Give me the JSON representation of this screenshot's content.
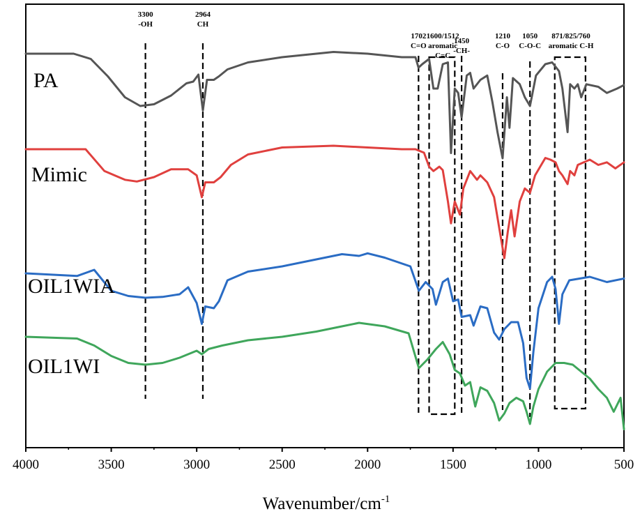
{
  "chart_data": {
    "type": "line",
    "xlabel": "Wavenumber/cm",
    "xlabel_sup": "-1",
    "xlim": [
      4000,
      500
    ],
    "x_reversed": true,
    "xticks": [
      "4000",
      "3500",
      "3000",
      "2500",
      "2000",
      "1500",
      "1000",
      "500"
    ],
    "y_axis_shown": false,
    "series": [
      {
        "name": "PA",
        "color": "#555555",
        "points": [
          [
            4000,
            0.0
          ],
          [
            3720,
            0.0
          ],
          [
            3620,
            -0.6
          ],
          [
            3520,
            -2.6
          ],
          [
            3420,
            -5.0
          ],
          [
            3330,
            -6.0
          ],
          [
            3250,
            -5.8
          ],
          [
            3150,
            -4.8
          ],
          [
            3060,
            -3.4
          ],
          [
            3020,
            -3.2
          ],
          [
            2990,
            -2.4
          ],
          [
            2964,
            -6.5
          ],
          [
            2940,
            -3.0
          ],
          [
            2900,
            -3.0
          ],
          [
            2870,
            -2.6
          ],
          [
            2820,
            -1.8
          ],
          [
            2700,
            -1.0
          ],
          [
            2500,
            -0.4
          ],
          [
            2200,
            0.2
          ],
          [
            2000,
            0.0
          ],
          [
            1800,
            -0.4
          ],
          [
            1720,
            -0.4
          ],
          [
            1702,
            -1.6
          ],
          [
            1680,
            -1.2
          ],
          [
            1640,
            -0.6
          ],
          [
            1615,
            -4.0
          ],
          [
            1590,
            -4.0
          ],
          [
            1560,
            -1.2
          ],
          [
            1530,
            -1.0
          ],
          [
            1512,
            -11.4
          ],
          [
            1490,
            -4.0
          ],
          [
            1470,
            -4.5
          ],
          [
            1450,
            -7.3
          ],
          [
            1420,
            -2.5
          ],
          [
            1400,
            -2.2
          ],
          [
            1380,
            -4.0
          ],
          [
            1340,
            -3.0
          ],
          [
            1300,
            -2.5
          ],
          [
            1270,
            -5.5
          ],
          [
            1240,
            -9.0
          ],
          [
            1210,
            -12.0
          ],
          [
            1185,
            -5.0
          ],
          [
            1170,
            -8.5
          ],
          [
            1150,
            -2.8
          ],
          [
            1110,
            -3.5
          ],
          [
            1080,
            -5.0
          ],
          [
            1050,
            -6.0
          ],
          [
            1015,
            -2.5
          ],
          [
            960,
            -1.2
          ],
          [
            920,
            -1.0
          ],
          [
            880,
            -2.0
          ],
          [
            860,
            -4.0
          ],
          [
            830,
            -9.0
          ],
          [
            815,
            -3.5
          ],
          [
            790,
            -4.0
          ],
          [
            770,
            -3.5
          ],
          [
            750,
            -5.0
          ],
          [
            720,
            -3.5
          ],
          [
            650,
            -3.8
          ],
          [
            600,
            -4.5
          ],
          [
            540,
            -4.0
          ],
          [
            500,
            -3.6
          ]
        ],
        "label_value": "PA"
      },
      {
        "name": "Mimic",
        "color": "#e0403e",
        "points": [
          [
            4000,
            0.0
          ],
          [
            3650,
            0.0
          ],
          [
            3540,
            -2.5
          ],
          [
            3420,
            -3.5
          ],
          [
            3350,
            -3.7
          ],
          [
            3250,
            -3.2
          ],
          [
            3150,
            -2.3
          ],
          [
            3050,
            -2.3
          ],
          [
            3000,
            -3.0
          ],
          [
            2970,
            -5.5
          ],
          [
            2950,
            -3.8
          ],
          [
            2900,
            -3.8
          ],
          [
            2860,
            -3.2
          ],
          [
            2800,
            -1.8
          ],
          [
            2700,
            -0.6
          ],
          [
            2500,
            0.2
          ],
          [
            2200,
            0.4
          ],
          [
            2000,
            0.2
          ],
          [
            1800,
            0.0
          ],
          [
            1720,
            0.0
          ],
          [
            1670,
            -0.4
          ],
          [
            1640,
            -2.0
          ],
          [
            1615,
            -2.5
          ],
          [
            1580,
            -2.0
          ],
          [
            1560,
            -2.4
          ],
          [
            1530,
            -6.0
          ],
          [
            1512,
            -8.5
          ],
          [
            1490,
            -6.0
          ],
          [
            1460,
            -7.5
          ],
          [
            1440,
            -4.5
          ],
          [
            1400,
            -2.5
          ],
          [
            1360,
            -3.5
          ],
          [
            1340,
            -3.0
          ],
          [
            1300,
            -3.8
          ],
          [
            1260,
            -5.5
          ],
          [
            1230,
            -9.0
          ],
          [
            1200,
            -12.5
          ],
          [
            1180,
            -9.5
          ],
          [
            1160,
            -7.0
          ],
          [
            1140,
            -10.0
          ],
          [
            1110,
            -6.0
          ],
          [
            1080,
            -4.5
          ],
          [
            1050,
            -5.0
          ],
          [
            1020,
            -3.0
          ],
          [
            960,
            -1.0
          ],
          [
            930,
            -1.2
          ],
          [
            900,
            -1.5
          ],
          [
            880,
            -2.5
          ],
          [
            860,
            -3.0
          ],
          [
            830,
            -4.0
          ],
          [
            815,
            -2.5
          ],
          [
            790,
            -3.0
          ],
          [
            770,
            -1.8
          ],
          [
            700,
            -1.2
          ],
          [
            650,
            -1.8
          ],
          [
            600,
            -1.5
          ],
          [
            550,
            -2.2
          ],
          [
            500,
            -1.5
          ]
        ],
        "label_value": "Mimic"
      },
      {
        "name": "OIL1WIA",
        "color": "#2a6cc4",
        "points": [
          [
            4000,
            0.0
          ],
          [
            3800,
            -0.2
          ],
          [
            3700,
            -0.3
          ],
          [
            3600,
            0.4
          ],
          [
            3550,
            -0.8
          ],
          [
            3500,
            -2.0
          ],
          [
            3400,
            -2.6
          ],
          [
            3300,
            -2.8
          ],
          [
            3200,
            -2.7
          ],
          [
            3100,
            -2.4
          ],
          [
            3050,
            -1.6
          ],
          [
            3000,
            -3.4
          ],
          [
            2970,
            -5.8
          ],
          [
            2950,
            -3.8
          ],
          [
            2900,
            -4.0
          ],
          [
            2870,
            -3.2
          ],
          [
            2820,
            -0.8
          ],
          [
            2700,
            0.2
          ],
          [
            2500,
            0.8
          ],
          [
            2300,
            1.6
          ],
          [
            2150,
            2.2
          ],
          [
            2050,
            2.0
          ],
          [
            2000,
            2.3
          ],
          [
            1900,
            1.8
          ],
          [
            1750,
            0.8
          ],
          [
            1700,
            -2.0
          ],
          [
            1660,
            -1.0
          ],
          [
            1620,
            -1.8
          ],
          [
            1600,
            -3.6
          ],
          [
            1560,
            -1.0
          ],
          [
            1530,
            -0.6
          ],
          [
            1500,
            -3.2
          ],
          [
            1470,
            -3.0
          ],
          [
            1450,
            -5.0
          ],
          [
            1400,
            -4.8
          ],
          [
            1380,
            -6.0
          ],
          [
            1340,
            -3.8
          ],
          [
            1300,
            -4.0
          ],
          [
            1260,
            -6.8
          ],
          [
            1230,
            -7.6
          ],
          [
            1200,
            -6.4
          ],
          [
            1160,
            -5.6
          ],
          [
            1120,
            -5.6
          ],
          [
            1090,
            -8.0
          ],
          [
            1070,
            -12.0
          ],
          [
            1050,
            -13.2
          ],
          [
            1030,
            -9.0
          ],
          [
            1000,
            -4.0
          ],
          [
            950,
            -1.0
          ],
          [
            920,
            -0.4
          ],
          [
            900,
            -1.8
          ],
          [
            880,
            -5.8
          ],
          [
            860,
            -2.4
          ],
          [
            820,
            -0.8
          ],
          [
            700,
            -0.4
          ],
          [
            600,
            -1.0
          ],
          [
            500,
            -0.6
          ]
        ],
        "label_value": "OIL1WIA"
      },
      {
        "name": "OIL1WI",
        "color": "#3fa65b",
        "points": [
          [
            4000,
            0.0
          ],
          [
            3700,
            -0.2
          ],
          [
            3600,
            -1.0
          ],
          [
            3500,
            -2.2
          ],
          [
            3400,
            -3.0
          ],
          [
            3300,
            -3.2
          ],
          [
            3200,
            -3.0
          ],
          [
            3100,
            -2.4
          ],
          [
            3000,
            -1.6
          ],
          [
            2970,
            -2.0
          ],
          [
            2930,
            -1.4
          ],
          [
            2850,
            -1.0
          ],
          [
            2700,
            -0.4
          ],
          [
            2500,
            0.0
          ],
          [
            2300,
            0.6
          ],
          [
            2150,
            1.2
          ],
          [
            2050,
            1.6
          ],
          [
            1900,
            1.2
          ],
          [
            1760,
            0.4
          ],
          [
            1700,
            -3.6
          ],
          [
            1650,
            -2.6
          ],
          [
            1600,
            -1.4
          ],
          [
            1560,
            -0.6
          ],
          [
            1520,
            -2.0
          ],
          [
            1490,
            -3.8
          ],
          [
            1460,
            -4.2
          ],
          [
            1430,
            -5.6
          ],
          [
            1400,
            -5.2
          ],
          [
            1370,
            -8.0
          ],
          [
            1340,
            -5.8
          ],
          [
            1300,
            -6.2
          ],
          [
            1260,
            -7.6
          ],
          [
            1230,
            -9.6
          ],
          [
            1200,
            -8.8
          ],
          [
            1170,
            -7.6
          ],
          [
            1130,
            -7.0
          ],
          [
            1090,
            -7.4
          ],
          [
            1070,
            -8.6
          ],
          [
            1050,
            -10.0
          ],
          [
            1030,
            -8.0
          ],
          [
            1000,
            -6.0
          ],
          [
            950,
            -4.0
          ],
          [
            900,
            -3.0
          ],
          [
            850,
            -3.0
          ],
          [
            800,
            -3.2
          ],
          [
            750,
            -4.0
          ],
          [
            700,
            -4.8
          ],
          [
            650,
            -6.0
          ],
          [
            600,
            -7.0
          ],
          [
            560,
            -8.6
          ],
          [
            520,
            -7.0
          ],
          [
            500,
            -10.6
          ]
        ],
        "label_value": "OIL1WI"
      }
    ],
    "annotations": [
      {
        "x": 3300,
        "lines": [
          "3300",
          "-OH"
        ]
      },
      {
        "x": 2964,
        "lines": [
          "2964",
          "CH"
        ]
      },
      {
        "x": 1702,
        "lines": [
          "1702",
          "C=O"
        ]
      },
      {
        "x": 1560,
        "lines": [
          "1600/1512",
          "aromatic",
          "C=C"
        ]
      },
      {
        "x": 1450,
        "lines": [
          "1450",
          "-CH-"
        ]
      },
      {
        "x": 1210,
        "lines": [
          "1210",
          "C-O"
        ]
      },
      {
        "x": 1050,
        "lines": [
          "1050",
          "C-O-C"
        ]
      },
      {
        "x": 810,
        "lines": [
          "871/825/760",
          "aromatic C-H"
        ]
      }
    ],
    "marker_lines": [
      3300,
      2964,
      1702,
      1450,
      1210,
      1050
    ],
    "marker_boxes": [
      [
        1640,
        1490
      ],
      [
        905,
        725
      ]
    ]
  }
}
